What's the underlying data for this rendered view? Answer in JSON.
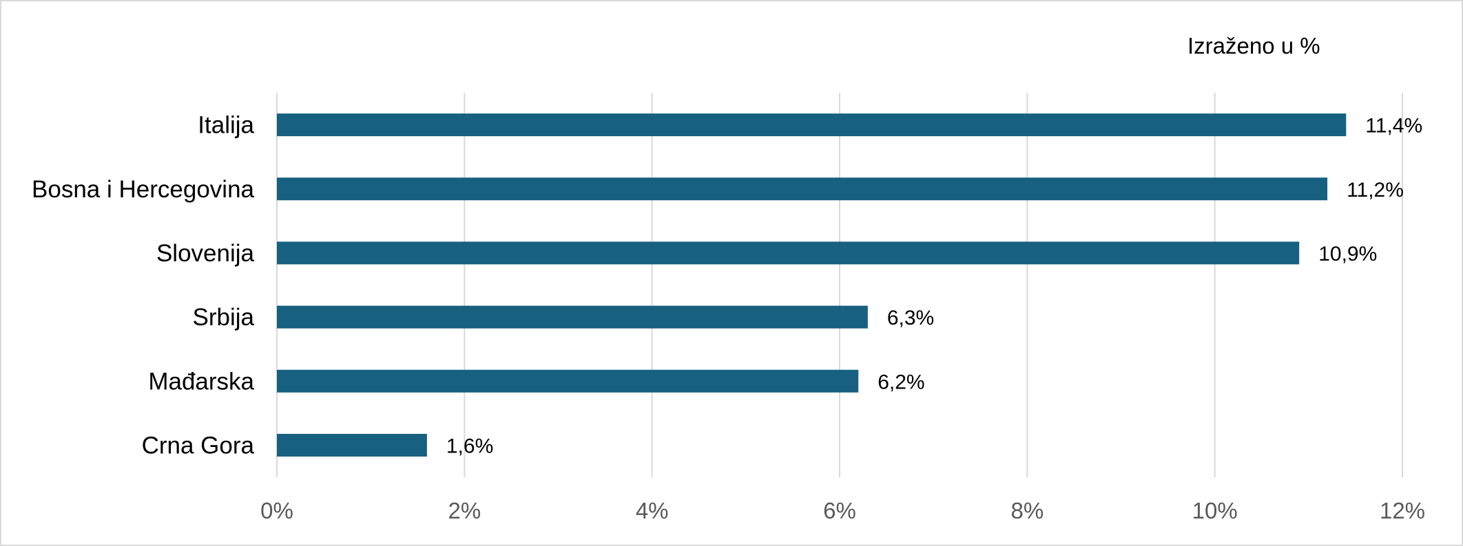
{
  "chart_data": {
    "type": "bar",
    "orientation": "horizontal",
    "unit_note": "Izraženo u %",
    "categories": [
      "Italija",
      "Bosna i Hercegovina",
      "Slovenija",
      "Srbija",
      "Mađarska",
      "Crna Gora"
    ],
    "values": [
      11.4,
      11.2,
      10.9,
      6.3,
      6.2,
      1.6
    ],
    "data_labels": [
      "11,4%",
      "11,2%",
      "10,9%",
      "6,3%",
      "6,2%",
      "1,6%"
    ],
    "xlim": [
      0,
      12
    ],
    "x_ticks": [
      0,
      2,
      4,
      6,
      8,
      10,
      12
    ],
    "x_tick_labels": [
      "0%",
      "2%",
      "4%",
      "6%",
      "8%",
      "10%",
      "12%"
    ],
    "grid": "vertical",
    "legend": "none",
    "bar_color": "#17607f",
    "grid_color": "#d9d9d9"
  }
}
